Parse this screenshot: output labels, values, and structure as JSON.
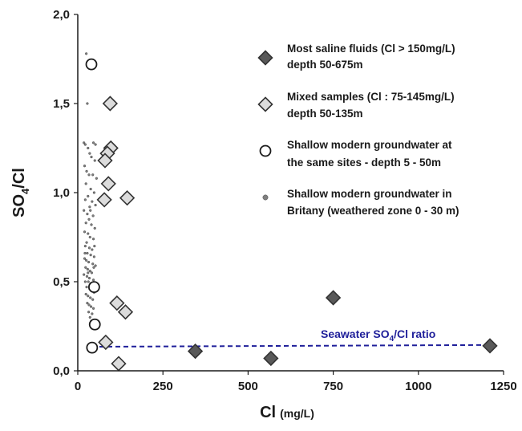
{
  "chart_data": {
    "type": "scatter",
    "xlabel": "Cl",
    "xlabel_unit": "(mg/L)",
    "ylabel_main": "SO",
    "ylabel_sub": "4",
    "ylabel_tail": "/Cl",
    "xlim": [
      0,
      1250
    ],
    "ylim": [
      0,
      2.0
    ],
    "x_ticks": [
      0,
      250,
      500,
      750,
      1000,
      1250
    ],
    "x_tick_labels": [
      "0",
      "250",
      "500",
      "750",
      "1000",
      "1250"
    ],
    "y_ticks": [
      0,
      0.5,
      1.0,
      1.5,
      2.0
    ],
    "y_tick_labels": [
      "0,0",
      "0,5",
      "1,0",
      "1,5",
      "2,0"
    ],
    "grid": false,
    "legend_position": "top-right",
    "colors": {
      "saline_fill": "#595959",
      "mixed_fill": "#dcdcdc",
      "shallow_sites_fill": "#ffffff",
      "brittany_fill": "#7f7f7f",
      "seawater_line": "#1f1f9a",
      "seawater_text": "#1f1f9a"
    },
    "series": [
      {
        "name_line1": "Most saline fluids (Cl > 150mg/L)",
        "name_line2": "depth 50-675m",
        "marker": "diamond-dark",
        "points": [
          [
            345,
            0.11
          ],
          [
            567,
            0.07
          ],
          [
            750,
            0.41
          ],
          [
            1210,
            0.14
          ]
        ]
      },
      {
        "name_line1": "Mixed samples (Cl : 75-145mg/L)",
        "name_line2": "depth 50-135m",
        "marker": "diamond-light",
        "points": [
          [
            95,
            1.5
          ],
          [
            97,
            1.25
          ],
          [
            87,
            1.22
          ],
          [
            80,
            1.18
          ],
          [
            90,
            1.05
          ],
          [
            78,
            0.96
          ],
          [
            145,
            0.97
          ],
          [
            115,
            0.38
          ],
          [
            140,
            0.33
          ],
          [
            82,
            0.16
          ],
          [
            120,
            0.04
          ]
        ]
      },
      {
        "name_line1": "Shallow modern groundwater at",
        "name_line2": "the same sites - depth 5 - 50m",
        "marker": "circle-open",
        "points": [
          [
            40,
            1.72
          ],
          [
            48,
            0.47
          ],
          [
            50,
            0.26
          ],
          [
            42,
            0.13
          ]
        ]
      },
      {
        "name_line1": "Shallow modern groundwater in",
        "name_line2": "Britany (weathered zone 0 - 30 m)",
        "marker": "dot",
        "points": [
          [
            25,
            1.78
          ],
          [
            28,
            1.5
          ],
          [
            18,
            1.28
          ],
          [
            22,
            1.27
          ],
          [
            30,
            1.25
          ],
          [
            46,
            1.28
          ],
          [
            52,
            1.27
          ],
          [
            35,
            1.22
          ],
          [
            40,
            1.2
          ],
          [
            50,
            1.18
          ],
          [
            20,
            1.15
          ],
          [
            26,
            1.12
          ],
          [
            33,
            1.1
          ],
          [
            44,
            1.1
          ],
          [
            55,
            1.08
          ],
          [
            24,
            1.05
          ],
          [
            38,
            1.02
          ],
          [
            48,
            1.0
          ],
          [
            30,
            0.98
          ],
          [
            22,
            0.96
          ],
          [
            42,
            0.95
          ],
          [
            52,
            0.93
          ],
          [
            35,
            0.92
          ],
          [
            18,
            0.9
          ],
          [
            28,
            0.88
          ],
          [
            45,
            0.87
          ],
          [
            33,
            0.85
          ],
          [
            24,
            0.83
          ],
          [
            40,
            0.82
          ],
          [
            50,
            0.8
          ],
          [
            20,
            0.78
          ],
          [
            30,
            0.77
          ],
          [
            36,
            0.75
          ],
          [
            46,
            0.74
          ],
          [
            26,
            0.72
          ],
          [
            22,
            0.7
          ],
          [
            34,
            0.69
          ],
          [
            42,
            0.68
          ],
          [
            28,
            0.66
          ],
          [
            38,
            0.65
          ],
          [
            48,
            0.64
          ],
          [
            20,
            0.63
          ],
          [
            25,
            0.62
          ],
          [
            32,
            0.61
          ],
          [
            44,
            0.6
          ],
          [
            52,
            0.59
          ],
          [
            23,
            0.58
          ],
          [
            29,
            0.57
          ],
          [
            36,
            0.56
          ],
          [
            41,
            0.55
          ],
          [
            18,
            0.54
          ],
          [
            27,
            0.53
          ],
          [
            34,
            0.52
          ],
          [
            46,
            0.51
          ],
          [
            22,
            0.5
          ],
          [
            31,
            0.5
          ],
          [
            38,
            0.49
          ],
          [
            43,
            0.48
          ],
          [
            26,
            0.47
          ],
          [
            35,
            0.46
          ],
          [
            40,
            0.45
          ],
          [
            48,
            0.44
          ],
          [
            24,
            0.43
          ],
          [
            30,
            0.42
          ],
          [
            37,
            0.41
          ],
          [
            44,
            0.4
          ],
          [
            28,
            0.38
          ],
          [
            33,
            0.37
          ],
          [
            39,
            0.36
          ],
          [
            46,
            0.35
          ],
          [
            32,
            0.33
          ],
          [
            42,
            0.32
          ],
          [
            36,
            0.3
          ],
          [
            40,
            0.28
          ],
          [
            45,
            0.26
          ],
          [
            30,
            0.55
          ],
          [
            47,
            0.58
          ],
          [
            21,
            0.66
          ],
          [
            49,
            0.7
          ],
          [
            37,
            0.9
          ]
        ]
      }
    ],
    "reference_line": {
      "label_main": "Seawater SO",
      "label_sub": "4",
      "label_tail": "/Cl ratio",
      "y_start": 0.135,
      "y_end": 0.145,
      "x_start": 40,
      "x_end": 1215
    }
  }
}
